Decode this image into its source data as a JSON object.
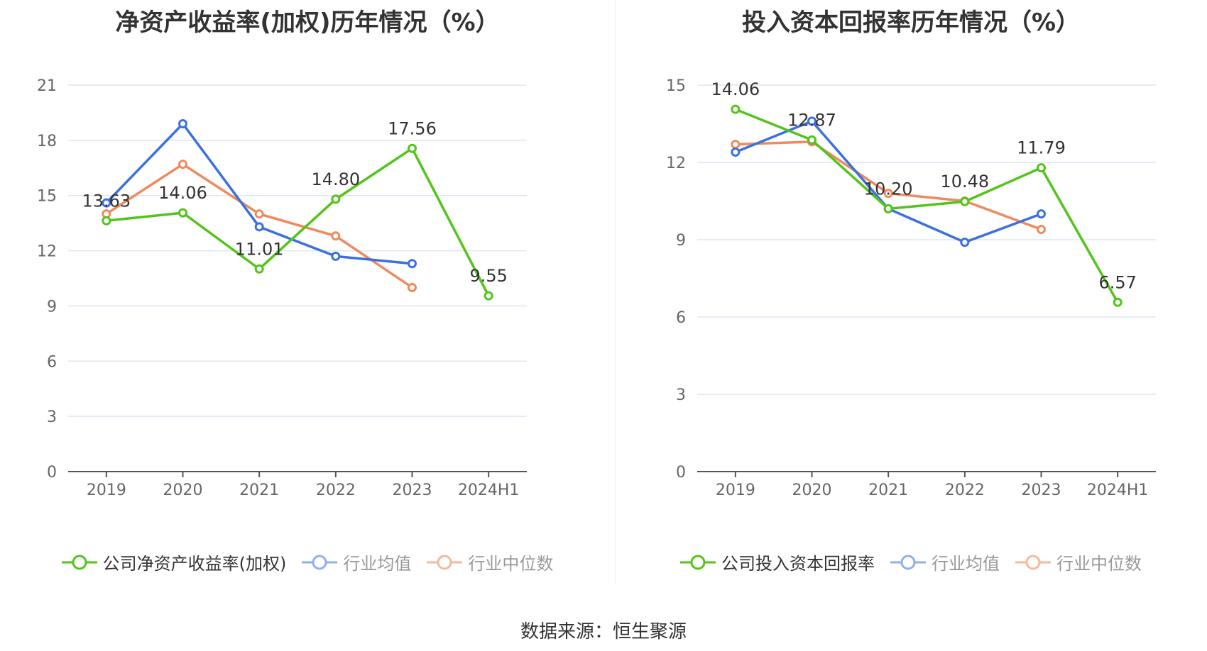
{
  "source": {
    "label": "数据来源：",
    "name": "恒生聚源"
  },
  "colors": {
    "company": "#52c41a",
    "avg": "#3b70e0",
    "median": "#f08a5d",
    "grid": "#dde6f2",
    "axis": "#555555",
    "text": "#666666"
  },
  "chart_data": [
    {
      "type": "line",
      "title": "净资产收益率(加权)历年情况（%）",
      "categories": [
        "2019",
        "2020",
        "2021",
        "2022",
        "2023",
        "2024H1"
      ],
      "ylim": [
        0,
        21
      ],
      "yticks": [
        0,
        3,
        6,
        9,
        12,
        15,
        18,
        21
      ],
      "grid": true,
      "legend_position": "bottom",
      "series": [
        {
          "name": "公司净资产收益率(加权)",
          "color": "#52c41a",
          "values": [
            13.63,
            14.06,
            11.01,
            14.8,
            17.56,
            9.55
          ],
          "labels": [
            "13.63",
            "14.06",
            "11.01",
            "14.80",
            "17.56",
            "9.55"
          ]
        },
        {
          "name": "行业均值",
          "color": "#3b70e0",
          "values": [
            14.6,
            18.9,
            13.3,
            11.7,
            11.3,
            null
          ]
        },
        {
          "name": "行业中位数",
          "color": "#f08a5d",
          "values": [
            14.0,
            16.7,
            14.0,
            12.8,
            10.0,
            null
          ]
        }
      ]
    },
    {
      "type": "line",
      "title": "投入资本回报率历年情况（%）",
      "categories": [
        "2019",
        "2020",
        "2021",
        "2022",
        "2023",
        "2024H1"
      ],
      "ylim": [
        0,
        15
      ],
      "yticks": [
        0,
        3,
        6,
        9,
        12,
        15
      ],
      "grid": true,
      "legend_position": "bottom",
      "series": [
        {
          "name": "公司投入资本回报率",
          "color": "#52c41a",
          "values": [
            14.06,
            12.87,
            10.2,
            10.48,
            11.79,
            6.57
          ],
          "labels": [
            "14.06",
            "12.87",
            "10.20",
            "10.48",
            "11.79",
            "6.57"
          ]
        },
        {
          "name": "行业均值",
          "color": "#3b70e0",
          "values": [
            12.4,
            13.6,
            10.2,
            8.9,
            10.0,
            null
          ]
        },
        {
          "name": "行业中位数",
          "color": "#f08a5d",
          "values": [
            12.7,
            12.8,
            10.8,
            10.5,
            9.4,
            null
          ]
        }
      ]
    }
  ]
}
